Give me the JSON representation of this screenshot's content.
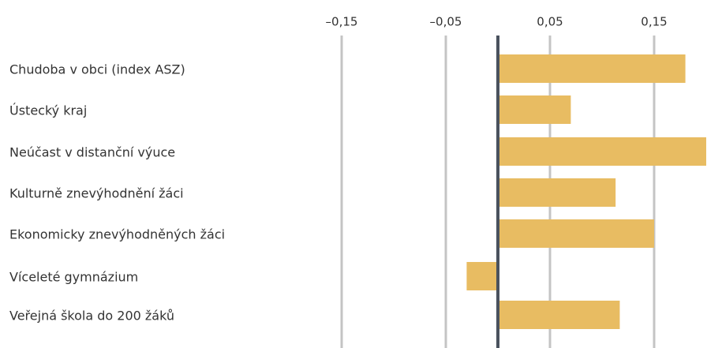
{
  "chart_data": {
    "type": "barh",
    "categories": [
      "Chudoba v obci (index ASZ)",
      "Ústecký kraj",
      "Neúčast v distanční výuce",
      "Kulturně znevýhodnění žáci",
      "Ekonomicky znevýhodněných žáci",
      "Víceleté gymnázium",
      "Veřejná škola do 200 žáků"
    ],
    "values": [
      0.18,
      0.07,
      0.2,
      0.113,
      0.15,
      -0.03,
      0.117
    ],
    "color": "#e8bc62",
    "xlim": [
      -0.2,
      0.2
    ],
    "xticks": [
      {
        "value": -0.15,
        "label": "–0,15"
      },
      {
        "value": -0.05,
        "label": "–0,05"
      },
      {
        "value": 0.05,
        "label": "0,05"
      },
      {
        "value": 0.15,
        "label": "0,15"
      }
    ],
    "grid": true
  }
}
